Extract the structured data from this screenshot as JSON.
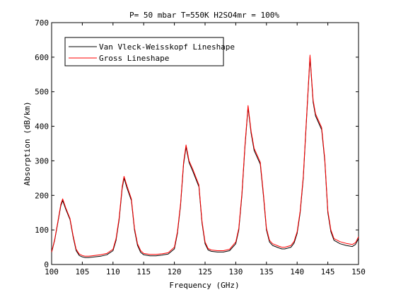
{
  "chart_data": {
    "type": "line",
    "title": "P= 50 mbar  T=550K  H2SO4mr = 100%",
    "xlabel": "Frequency (GHz)",
    "ylabel": "Absorption (dB/km)",
    "xlim": [
      100,
      150
    ],
    "ylim": [
      0,
      700
    ],
    "x_ticks": [
      100,
      105,
      110,
      115,
      120,
      125,
      130,
      135,
      140,
      145,
      150
    ],
    "y_ticks": [
      0,
      100,
      200,
      300,
      400,
      500,
      600,
      700
    ],
    "grid": false,
    "legend_position": "top-left",
    "series": [
      {
        "name": "Van Vleck-Weisskopf Lineshape",
        "color": "#000000",
        "x": [
          100,
          100.5,
          101,
          101.5,
          101.8,
          102.3,
          103,
          103.5,
          104,
          104.5,
          105,
          105.5,
          106,
          107,
          108,
          109,
          110,
          110.5,
          111,
          111.5,
          111.8,
          112.3,
          113,
          113.5,
          114,
          114.5,
          115,
          116,
          117,
          118,
          119,
          120,
          120.5,
          121,
          121.5,
          121.9,
          122.4,
          123,
          124,
          124.5,
          125,
          125.5,
          126,
          127,
          128,
          129,
          130,
          130.5,
          131,
          131.5,
          132,
          132.5,
          133,
          134,
          134.5,
          135,
          135.5,
          136,
          137,
          137.5,
          138,
          139,
          139.5,
          140,
          140.5,
          141,
          141.5,
          142.1,
          142.6,
          143,
          144,
          144.5,
          145,
          145.5,
          146,
          147,
          148,
          149,
          149.5,
          150
        ],
        "values": [
          35,
          70,
          120,
          170,
          185,
          160,
          130,
          80,
          40,
          26,
          22,
          20,
          20,
          22,
          24,
          28,
          40,
          70,
          130,
          220,
          250,
          220,
          185,
          100,
          55,
          35,
          28,
          25,
          25,
          27,
          30,
          45,
          90,
          170,
          290,
          340,
          295,
          270,
          225,
          120,
          60,
          42,
          38,
          36,
          36,
          40,
          60,
          100,
          200,
          340,
          455,
          380,
          330,
          290,
          200,
          100,
          65,
          55,
          48,
          45,
          45,
          50,
          62,
          90,
          150,
          250,
          410,
          600,
          470,
          430,
          390,
          300,
          150,
          95,
          70,
          60,
          55,
          52,
          58,
          75
        ]
      },
      {
        "name": "Gross Lineshape",
        "color": "#ff0000",
        "x": [
          100,
          100.5,
          101,
          101.5,
          101.8,
          102.3,
          103,
          103.5,
          104,
          104.5,
          105,
          105.5,
          106,
          107,
          108,
          109,
          110,
          110.5,
          111,
          111.5,
          111.8,
          112.3,
          113,
          113.5,
          114,
          114.5,
          115,
          116,
          117,
          118,
          119,
          120,
          120.5,
          121,
          121.5,
          121.9,
          122.4,
          123,
          124,
          124.5,
          125,
          125.5,
          126,
          127,
          128,
          129,
          130,
          130.5,
          131,
          131.5,
          132,
          132.5,
          133,
          134,
          134.5,
          135,
          135.5,
          136,
          137,
          137.5,
          138,
          139,
          139.5,
          140,
          140.5,
          141,
          141.5,
          142.1,
          142.6,
          143,
          144,
          144.5,
          145,
          145.5,
          146,
          147,
          148,
          149,
          149.5,
          150
        ],
        "values": [
          36,
          72,
          123,
          174,
          190,
          164,
          133,
          84,
          44,
          30,
          26,
          24,
          24,
          26,
          28,
          32,
          44,
          75,
          135,
          226,
          255,
          226,
          190,
          105,
          60,
          40,
          32,
          29,
          29,
          31,
          34,
          50,
          95,
          175,
          296,
          346,
          300,
          276,
          230,
          125,
          65,
          46,
          42,
          40,
          40,
          44,
          65,
          105,
          206,
          346,
          460,
          386,
          336,
          296,
          206,
          105,
          70,
          60,
          53,
          50,
          50,
          55,
          67,
          95,
          155,
          256,
          416,
          606,
          476,
          436,
          396,
          306,
          156,
          100,
          75,
          66,
          61,
          58,
          63,
          80
        ]
      }
    ]
  }
}
